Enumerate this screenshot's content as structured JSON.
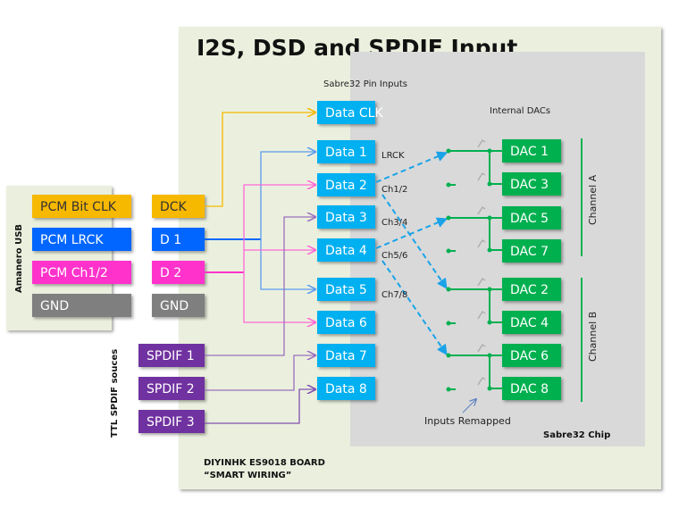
{
  "title": "I2S, DSD and SPDIF Input",
  "chip_label": "Sabre32 Chip",
  "pin_inputs_label": "Sabre32 Pin Inputs",
  "internal_dacs_label": "Internal DACs",
  "board_label_1": "DIYINHK ES9018 BOARD",
  "board_label_2": "“SMART WIRING”",
  "remapped_label": "Inputs Remapped",
  "amanero": {
    "label": "Amanero USB",
    "pins": [
      "PCM Bit CLK",
      "PCM LRCK",
      "PCM Ch1/2",
      "GND"
    ],
    "board_pins": [
      "DCK",
      "D 1",
      "D 2",
      "GND"
    ]
  },
  "spdif": {
    "label": "TTL SPDIF souces",
    "sources": [
      "SPDIF 1",
      "SPDIF 2",
      "SPDIF 3"
    ]
  },
  "data_pins": [
    "Data CLK",
    "Data 1",
    "Data 2",
    "Data 3",
    "Data 4",
    "Data 5",
    "Data 6",
    "Data 7",
    "Data 8"
  ],
  "signal_labels": [
    "LRCK",
    "Ch1/2",
    "Ch3/4",
    "Ch5/6",
    "Ch7/8"
  ],
  "dacs": [
    "DAC 1",
    "DAC 3",
    "DAC 5",
    "DAC 7",
    "DAC 2",
    "DAC 4",
    "DAC 6",
    "DAC 8"
  ],
  "channels": [
    "Channel A",
    "Channel B"
  ],
  "colors": {
    "clk": "#f7b800",
    "lrck": "#0066ff",
    "data": "#ff33cc",
    "gnd": "#7f7f7f",
    "spdif": "#7030a0",
    "pin": "#00b0f0",
    "dac": "#00b050",
    "board": "#ebf0de",
    "chip": "#d9d9d9"
  }
}
